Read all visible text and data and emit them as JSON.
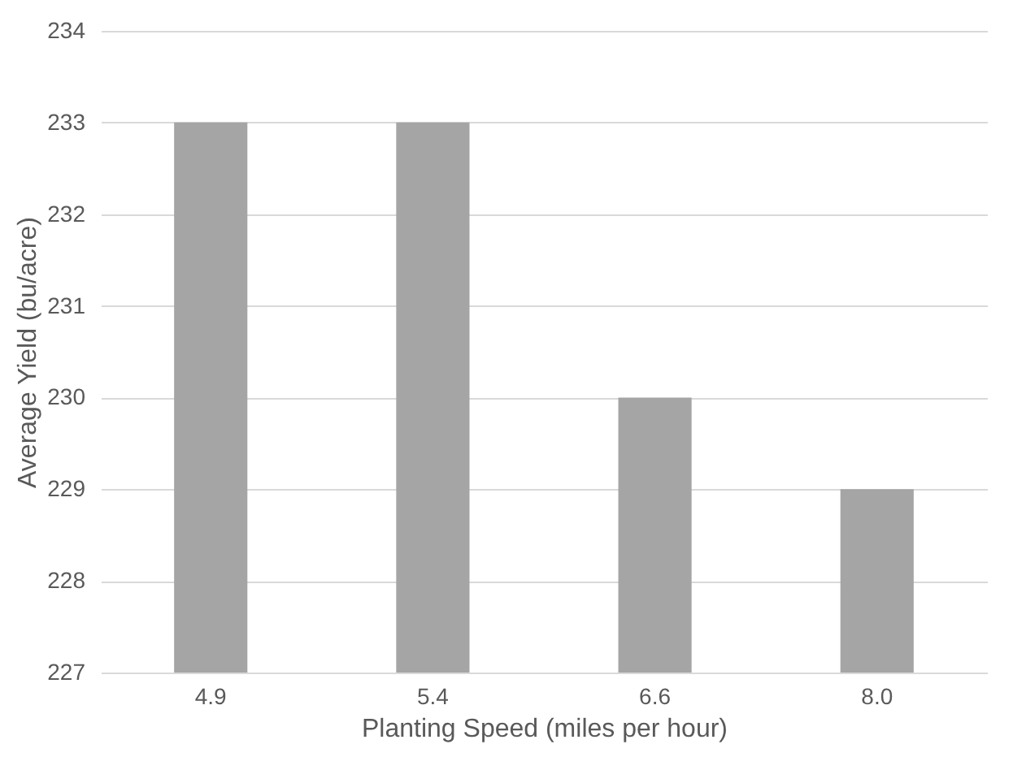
{
  "chart_data": {
    "type": "bar",
    "xlabel": "Planting Speed (miles per hour)",
    "ylabel": "Average Yield (bu/acre)",
    "categories": [
      "4.9",
      "5.4",
      "6.6",
      "8.0"
    ],
    "values": [
      233,
      233,
      230,
      229
    ],
    "color": "#a5a5a5",
    "ylim": [
      227,
      234
    ],
    "yticks": [
      227,
      228,
      229,
      230,
      231,
      232,
      233,
      234
    ],
    "grid": "y"
  }
}
